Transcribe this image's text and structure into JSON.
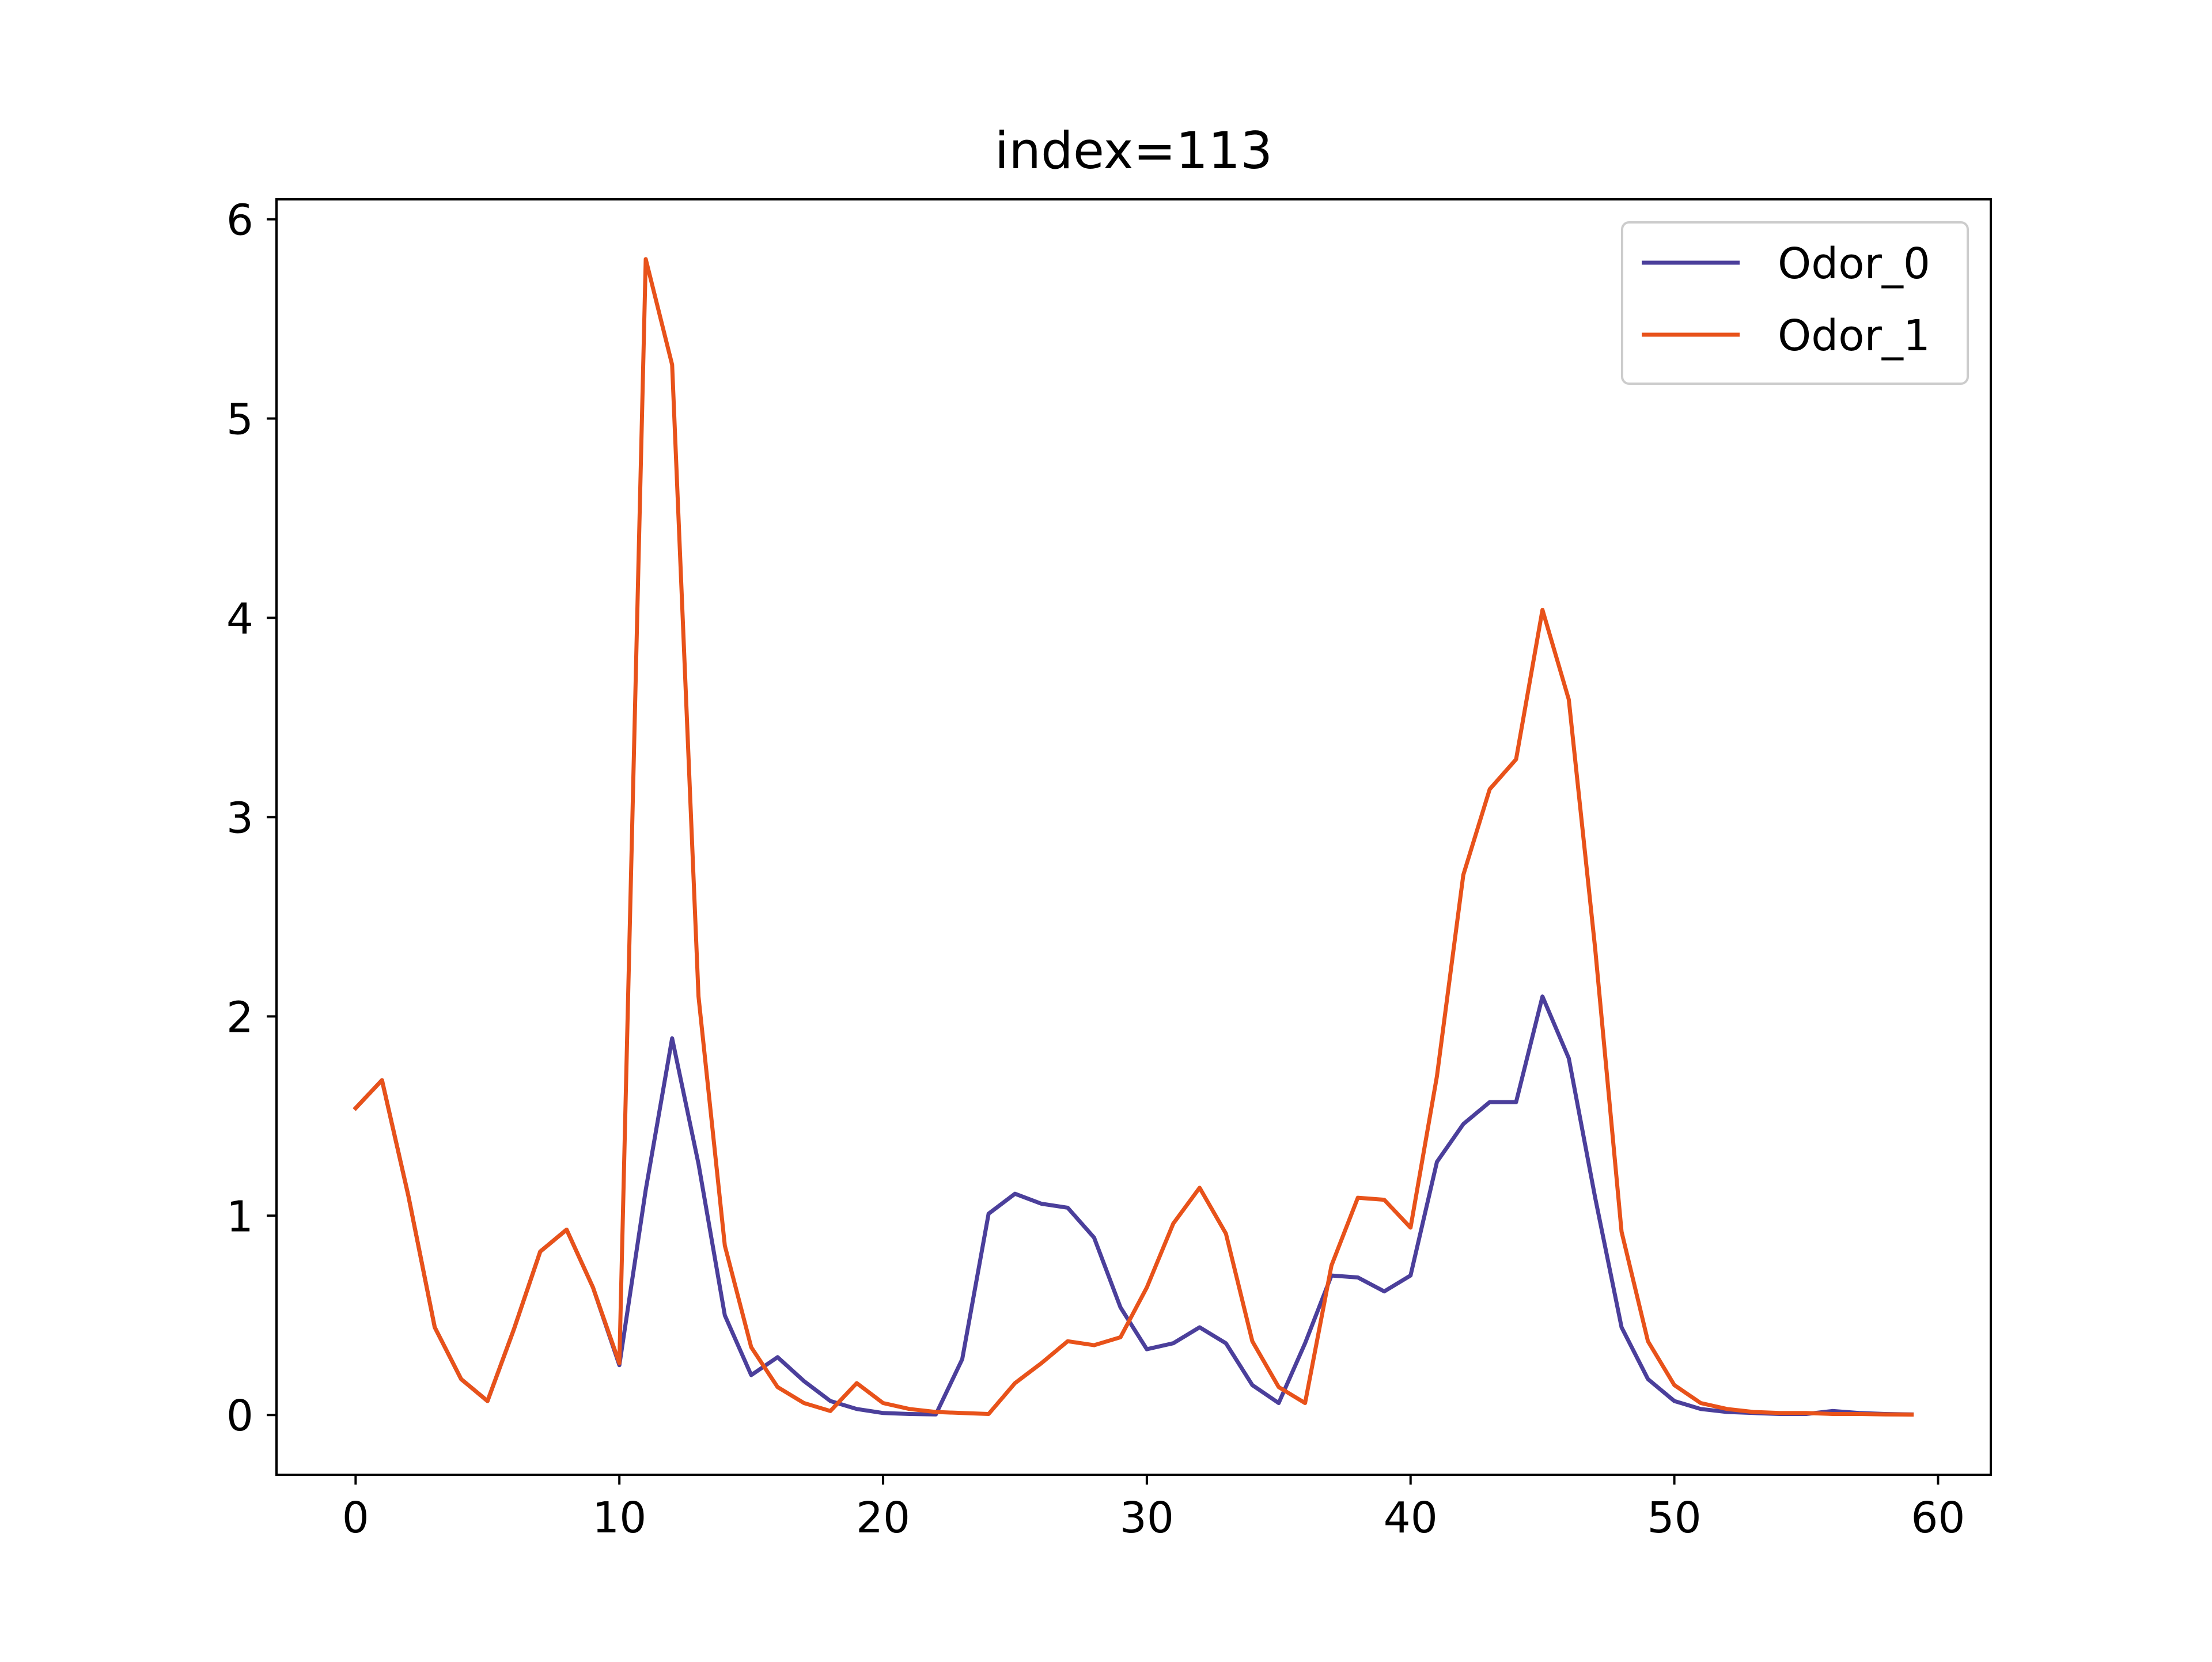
{
  "chart_data": {
    "type": "line",
    "title": "index=113",
    "xlabel": "",
    "ylabel": "",
    "xlim": [
      -3,
      62
    ],
    "ylim": [
      -0.3,
      6.1
    ],
    "xticks": [
      0,
      10,
      20,
      30,
      40,
      50,
      60
    ],
    "yticks": [
      0,
      1,
      2,
      3,
      4,
      5,
      6
    ],
    "grid": false,
    "legend_position": "top-right",
    "x": [
      0,
      1,
      2,
      3,
      4,
      5,
      6,
      7,
      8,
      9,
      10,
      11,
      12,
      13,
      14,
      15,
      16,
      17,
      18,
      19,
      20,
      21,
      22,
      23,
      24,
      25,
      26,
      27,
      28,
      29,
      30,
      31,
      32,
      33,
      34,
      35,
      36,
      37,
      38,
      39,
      40,
      41,
      42,
      43,
      44,
      45,
      46,
      47,
      48,
      49,
      50,
      51,
      52,
      53,
      54,
      55,
      56,
      57,
      58,
      59
    ],
    "series": [
      {
        "name": "Odor_0",
        "color": "#4b3f9b",
        "values": [
          1.54,
          1.68,
          1.1,
          0.44,
          0.18,
          0.07,
          0.43,
          0.82,
          0.93,
          0.64,
          0.25,
          1.13,
          1.89,
          1.26,
          0.5,
          0.2,
          0.29,
          0.17,
          0.07,
          0.03,
          0.01,
          0.005,
          0.003,
          0.28,
          1.01,
          1.11,
          1.06,
          1.04,
          0.89,
          0.54,
          0.33,
          0.36,
          0.44,
          0.36,
          0.15,
          0.06,
          0.36,
          0.7,
          0.69,
          0.62,
          0.7,
          1.27,
          1.46,
          1.57,
          1.57,
          2.1,
          1.79,
          1.09,
          0.44,
          0.18,
          0.07,
          0.03,
          0.015,
          0.01,
          0.005,
          0.005,
          0.02,
          0.01,
          0.005,
          0.003
        ]
      },
      {
        "name": "Odor_1",
        "color": "#e8521a",
        "values": [
          1.54,
          1.68,
          1.1,
          0.44,
          0.18,
          0.07,
          0.43,
          0.82,
          0.93,
          0.64,
          0.26,
          5.8,
          5.27,
          2.1,
          0.85,
          0.34,
          0.14,
          0.06,
          0.02,
          0.16,
          0.06,
          0.03,
          0.015,
          0.01,
          0.005,
          0.16,
          0.26,
          0.37,
          0.35,
          0.39,
          0.64,
          0.96,
          1.14,
          0.91,
          0.37,
          0.14,
          0.06,
          0.75,
          1.09,
          1.08,
          0.94,
          1.7,
          2.71,
          3.14,
          3.29,
          4.04,
          3.59,
          2.34,
          0.92,
          0.37,
          0.15,
          0.06,
          0.03,
          0.015,
          0.01,
          0.01,
          0.005,
          0.005,
          0.003,
          0.002
        ]
      }
    ]
  }
}
